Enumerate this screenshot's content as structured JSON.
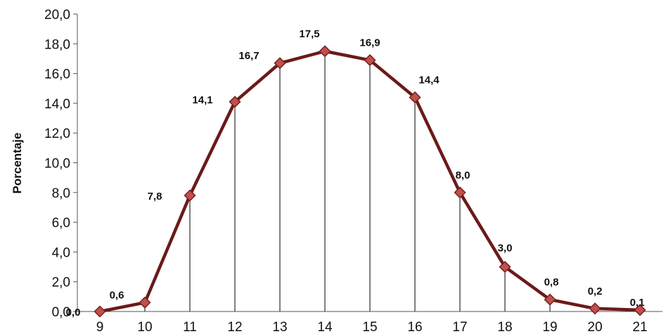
{
  "chart_data": {
    "type": "line",
    "title": "",
    "xlabel": "",
    "ylabel": "Porcentaje",
    "categories": [
      "9",
      "10",
      "11",
      "12",
      "13",
      "14",
      "15",
      "16",
      "17",
      "18",
      "19",
      "20",
      "21"
    ],
    "series": [
      {
        "values": [
          0.0,
          0.6,
          7.8,
          14.1,
          16.7,
          17.5,
          16.9,
          14.4,
          8.0,
          3.0,
          0.8,
          0.2,
          0.1
        ],
        "labels": [
          "0,0",
          "0,6",
          "7,8",
          "14,1",
          "16,7",
          "17,5",
          "16,9",
          "14,4",
          "8,0",
          "3,0",
          "0,8",
          "0,2",
          "0,1"
        ],
        "line_color": "#6b1a1a",
        "marker_fill": "#c0504d",
        "marker": "diamond"
      }
    ],
    "ylim": [
      0,
      20
    ],
    "y_ticks": [
      "0,0",
      "2,0",
      "4,0",
      "6,0",
      "8,0",
      "10,0",
      "12,0",
      "14,0",
      "16,0",
      "18,0",
      "20,0"
    ],
    "drop_lines": true,
    "grid": false,
    "legend": "none"
  }
}
